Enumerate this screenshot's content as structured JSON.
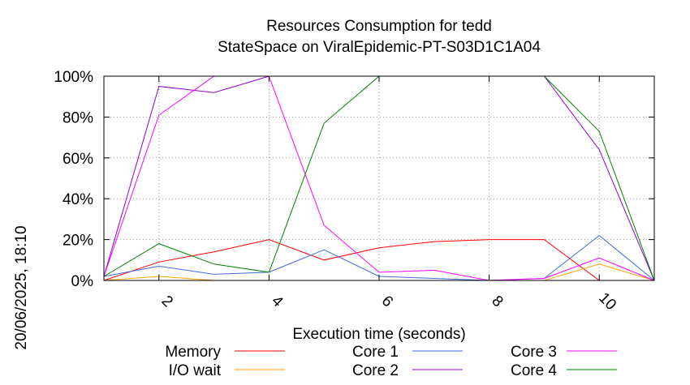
{
  "chart_data": {
    "type": "line",
    "title_lines": [
      "Resources Consumption for tedd",
      "StateSpace on ViralEpidemic-PT-S03D1C1A04"
    ],
    "xlabel": "Execution time (seconds)",
    "ylabel": "",
    "side_label": "20/06/2025, 18:10",
    "xlim": [
      1,
      11
    ],
    "ylim": [
      0,
      100
    ],
    "x_ticks": [
      2,
      4,
      6,
      8,
      10
    ],
    "y_ticks": [
      0,
      20,
      40,
      60,
      80,
      100
    ],
    "y_tick_labels": [
      "0%",
      "20%",
      "40%",
      "60%",
      "80%",
      "100%"
    ],
    "grid": true,
    "legend_position": "bottom",
    "x": [
      1,
      2,
      3,
      4,
      5,
      6,
      7,
      8,
      9,
      10,
      11
    ],
    "series": [
      {
        "name": "Memory",
        "color": "#ff0000",
        "values": [
          0,
          9,
          14,
          20,
          10,
          16,
          19,
          20,
          20,
          0,
          0
        ]
      },
      {
        "name": "I/O wait",
        "color": "#ffa500",
        "values": [
          0,
          2,
          0,
          0,
          0,
          0,
          0,
          0,
          0,
          8,
          0
        ]
      },
      {
        "name": "Core 1",
        "color": "#4169e1",
        "values": [
          2,
          7,
          3,
          4,
          15,
          2,
          1,
          0,
          1,
          22,
          0
        ]
      },
      {
        "name": "Core 2",
        "color": "#9400d3",
        "values": [
          2,
          95,
          92,
          100,
          100,
          100,
          100,
          100,
          100,
          64,
          0
        ]
      },
      {
        "name": "Core 3",
        "color": "#ff00ff",
        "values": [
          2,
          81,
          100,
          100,
          27,
          4,
          5,
          0,
          1,
          11,
          0
        ]
      },
      {
        "name": "Core 4",
        "color": "#008000",
        "values": [
          2,
          18,
          8,
          4,
          77,
          100,
          100,
          100,
          100,
          73,
          0
        ]
      }
    ]
  }
}
